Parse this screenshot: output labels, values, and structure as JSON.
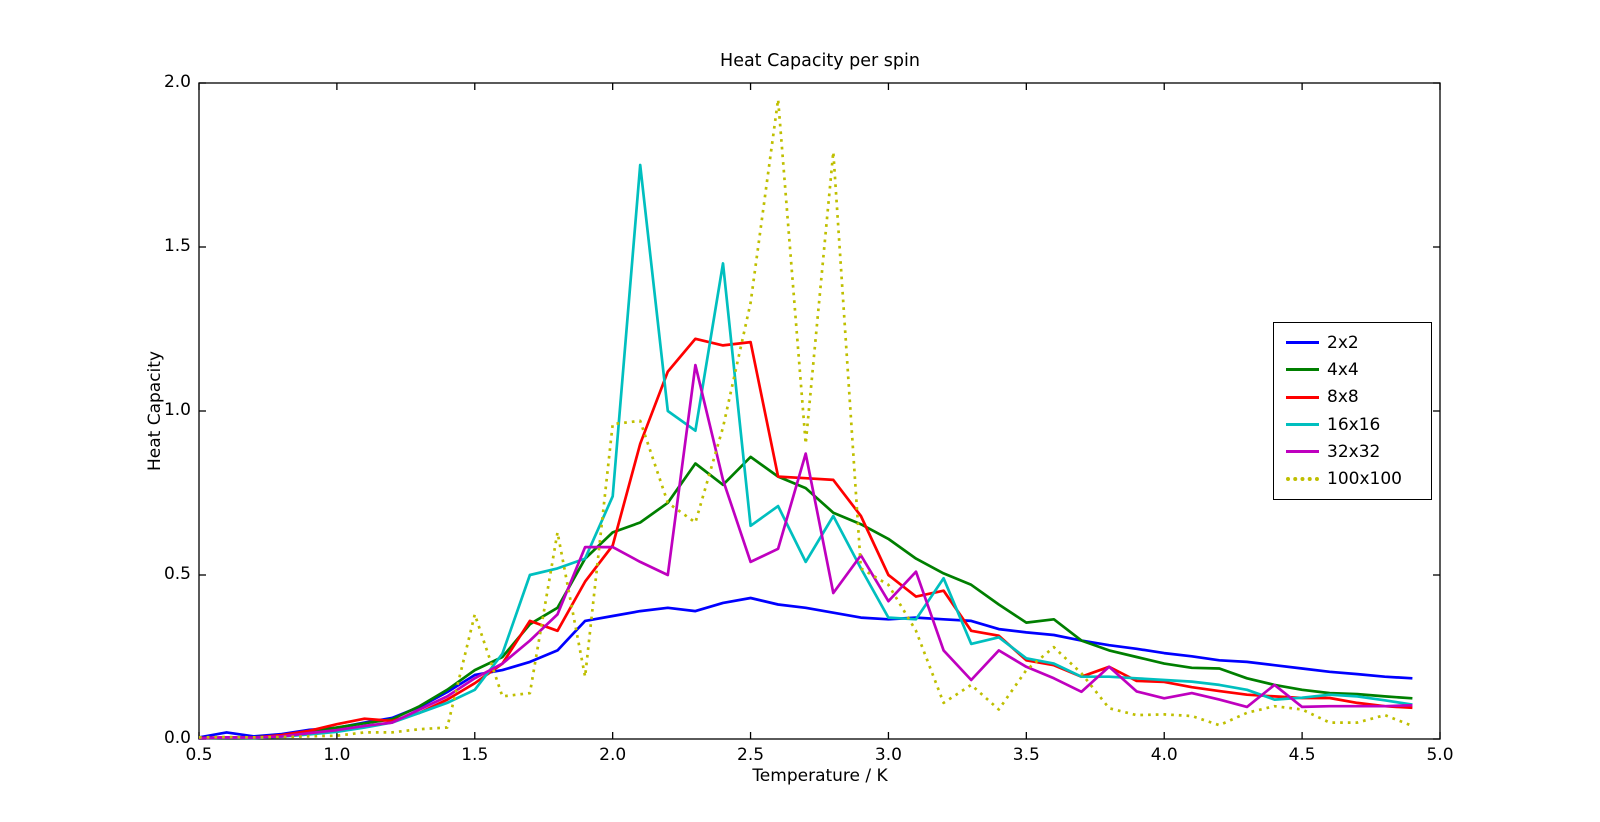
{
  "figure": {
    "background": "#ffffff",
    "plot_background": "#ffffff",
    "spine_color": "#000000"
  },
  "chart_data": {
    "type": "line",
    "title": "Heat Capacity per spin",
    "xlabel": "Temperature / K",
    "ylabel": "Heat Capacity",
    "xlim": [
      0.5,
      5.0
    ],
    "ylim": [
      0.0,
      2.0
    ],
    "grid": false,
    "legend_position": "upper right inside",
    "xticks": {
      "values": [
        0.5,
        1.0,
        1.5,
        2.0,
        2.5,
        3.0,
        3.5,
        4.0,
        4.5,
        5.0
      ],
      "labels": [
        "0.5",
        "1.0",
        "1.5",
        "2.0",
        "2.5",
        "3.0",
        "3.5",
        "4.0",
        "4.5",
        "5.0"
      ]
    },
    "yticks": {
      "values": [
        0.0,
        0.5,
        1.0,
        1.5,
        2.0
      ],
      "labels": [
        "0.0",
        "0.5",
        "1.0",
        "1.5",
        "2.0"
      ]
    },
    "x": [
      0.5,
      0.6,
      0.7,
      0.8,
      0.9,
      1.0,
      1.1,
      1.2,
      1.3,
      1.4,
      1.5,
      1.6,
      1.7,
      1.8,
      1.9,
      2.0,
      2.1,
      2.2,
      2.3,
      2.4,
      2.5,
      2.6,
      2.7,
      2.8,
      2.9,
      3.0,
      3.1,
      3.2,
      3.3,
      3.4,
      3.5,
      3.6,
      3.7,
      3.8,
      3.9,
      4.0,
      4.1,
      4.2,
      4.3,
      4.4,
      4.5,
      4.6,
      4.7,
      4.8,
      4.9
    ],
    "series": [
      {
        "name": "2x2",
        "color": "#0000ff",
        "style": "solid",
        "values": [
          0.005,
          0.02,
          0.008,
          0.015,
          0.028,
          0.034,
          0.05,
          0.064,
          0.098,
          0.143,
          0.195,
          0.21,
          0.235,
          0.27,
          0.36,
          0.375,
          0.39,
          0.4,
          0.39,
          0.415,
          0.43,
          0.41,
          0.4,
          0.385,
          0.37,
          0.365,
          0.37,
          0.365,
          0.36,
          0.335,
          0.325,
          0.317,
          0.3,
          0.286,
          0.275,
          0.262,
          0.252,
          0.24,
          0.235,
          0.225,
          0.215,
          0.205,
          0.198,
          0.19,
          0.185
        ]
      },
      {
        "name": "4x4",
        "color": "#007f00",
        "style": "solid",
        "values": [
          0.002,
          0.004,
          0.005,
          0.01,
          0.02,
          0.035,
          0.048,
          0.06,
          0.1,
          0.15,
          0.21,
          0.25,
          0.35,
          0.4,
          0.55,
          0.63,
          0.66,
          0.72,
          0.84,
          0.775,
          0.86,
          0.8,
          0.765,
          0.69,
          0.655,
          0.61,
          0.55,
          0.505,
          0.47,
          0.41,
          0.355,
          0.365,
          0.3,
          0.27,
          0.25,
          0.23,
          0.217,
          0.215,
          0.185,
          0.165,
          0.15,
          0.14,
          0.137,
          0.13,
          0.124
        ]
      },
      {
        "name": "8x8",
        "color": "#ff0000",
        "style": "solid",
        "values": [
          0.003,
          0.005,
          0.004,
          0.012,
          0.025,
          0.045,
          0.062,
          0.055,
          0.08,
          0.12,
          0.17,
          0.23,
          0.36,
          0.33,
          0.48,
          0.59,
          0.9,
          1.12,
          1.22,
          1.2,
          1.21,
          0.8,
          0.795,
          0.79,
          0.68,
          0.5,
          0.434,
          0.452,
          0.33,
          0.315,
          0.24,
          0.225,
          0.19,
          0.22,
          0.177,
          0.174,
          0.158,
          0.146,
          0.135,
          0.13,
          0.125,
          0.125,
          0.11,
          0.1,
          0.095
        ]
      },
      {
        "name": "16x16",
        "color": "#00bfbf",
        "style": "solid",
        "values": [
          0.002,
          0.004,
          0.003,
          0.007,
          0.014,
          0.022,
          0.035,
          0.05,
          0.08,
          0.11,
          0.15,
          0.26,
          0.5,
          0.52,
          0.55,
          0.74,
          1.75,
          1.0,
          0.94,
          1.45,
          0.65,
          0.71,
          0.54,
          0.68,
          0.52,
          0.37,
          0.365,
          0.49,
          0.29,
          0.31,
          0.246,
          0.23,
          0.19,
          0.19,
          0.185,
          0.18,
          0.175,
          0.165,
          0.15,
          0.12,
          0.126,
          0.135,
          0.13,
          0.118,
          0.105
        ]
      },
      {
        "name": "32x32",
        "color": "#bf00bf",
        "style": "solid",
        "values": [
          0.002,
          0.005,
          0.004,
          0.008,
          0.018,
          0.027,
          0.04,
          0.05,
          0.09,
          0.13,
          0.185,
          0.23,
          0.3,
          0.38,
          0.585,
          0.585,
          0.54,
          0.5,
          1.14,
          0.79,
          0.54,
          0.58,
          0.87,
          0.445,
          0.56,
          0.42,
          0.51,
          0.27,
          0.18,
          0.27,
          0.22,
          0.185,
          0.144,
          0.22,
          0.145,
          0.124,
          0.14,
          0.12,
          0.098,
          0.165,
          0.098,
          0.1,
          0.1,
          0.1,
          0.103
        ]
      },
      {
        "name": "100x100",
        "color": "#bfbf00",
        "style": "dotted",
        "values": [
          0.005,
          0.006,
          0.005,
          0.006,
          0.008,
          0.01,
          0.02,
          0.02,
          0.03,
          0.035,
          0.38,
          0.13,
          0.14,
          0.63,
          0.19,
          0.96,
          0.97,
          0.72,
          0.66,
          0.95,
          1.33,
          1.95,
          0.9,
          1.79,
          0.52,
          0.47,
          0.33,
          0.11,
          0.165,
          0.09,
          0.21,
          0.28,
          0.2,
          0.094,
          0.073,
          0.075,
          0.07,
          0.042,
          0.08,
          0.1,
          0.09,
          0.05,
          0.05,
          0.073,
          0.04
        ]
      }
    ]
  }
}
